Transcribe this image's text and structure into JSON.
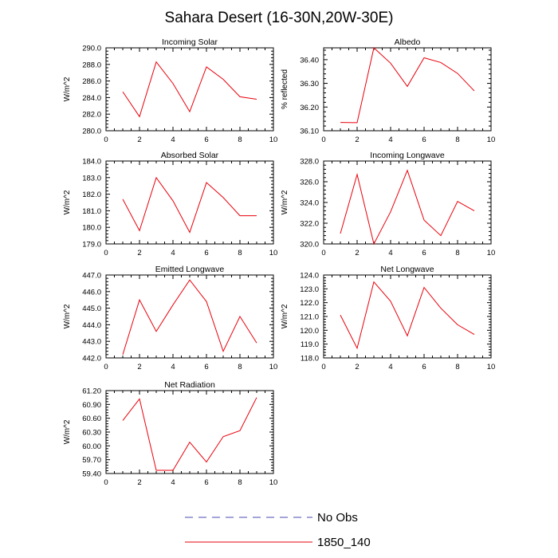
{
  "title": "Sahara Desert (16-30N,20W-30E)",
  "legend": {
    "placement": "bottom-center",
    "entries": [
      {
        "label": "No Obs",
        "color": "#4a4ab0",
        "dash": true
      },
      {
        "label": "1850_140",
        "color": "#e8000b",
        "dash": false
      }
    ]
  },
  "chart_data": [
    {
      "type": "line",
      "title": "Incoming Solar",
      "ylabel": "W/m^2",
      "xlim": [
        0,
        10
      ],
      "ylim": [
        280.0,
        290.0
      ],
      "xticks": [
        "0",
        "2",
        "4",
        "6",
        "8",
        "10"
      ],
      "yticks": [
        "280.0",
        "282.0",
        "284.0",
        "286.0",
        "288.0",
        "290.0"
      ],
      "series": [
        {
          "color": "#e8000b",
          "x": [
            1,
            2,
            3,
            4,
            5,
            6,
            7,
            8,
            9
          ],
          "values": [
            284.7,
            281.7,
            288.3,
            285.7,
            282.3,
            287.7,
            286.2,
            284.1,
            283.8
          ]
        }
      ]
    },
    {
      "type": "line",
      "title": "Albedo",
      "ylabel": "% reflected",
      "xlim": [
        0,
        10
      ],
      "ylim": [
        36.1,
        36.45
      ],
      "xticks": [
        "0",
        "2",
        "4",
        "6",
        "8",
        "10"
      ],
      "yticks": [
        "36.10",
        "36.20",
        "36.30",
        "36.40"
      ],
      "series": [
        {
          "color": "#e8000b",
          "x": [
            1,
            2,
            3,
            4,
            5,
            6,
            7,
            8,
            9
          ],
          "values": [
            36.135,
            36.134,
            36.45,
            36.385,
            36.287,
            36.408,
            36.388,
            36.342,
            36.268
          ]
        }
      ]
    },
    {
      "type": "line",
      "title": "Absorbed Solar",
      "ylabel": "W/m^2",
      "xlim": [
        0,
        10
      ],
      "ylim": [
        179.0,
        184.0
      ],
      "xticks": [
        "0",
        "2",
        "4",
        "6",
        "8",
        "10"
      ],
      "yticks": [
        "179.0",
        "180.0",
        "181.0",
        "182.0",
        "183.0",
        "184.0"
      ],
      "series": [
        {
          "color": "#e8000b",
          "x": [
            1,
            2,
            3,
            4,
            5,
            6,
            7,
            8,
            9
          ],
          "values": [
            181.7,
            179.8,
            183.0,
            181.6,
            179.7,
            182.7,
            181.8,
            180.7,
            180.7
          ]
        }
      ]
    },
    {
      "type": "line",
      "title": "Incoming Longwave",
      "ylabel": "W/m^2",
      "xlim": [
        0,
        10
      ],
      "ylim": [
        320.0,
        328.0
      ],
      "xticks": [
        "0",
        "2",
        "4",
        "6",
        "8",
        "10"
      ],
      "yticks": [
        "320.0",
        "322.0",
        "324.0",
        "326.0",
        "328.0"
      ],
      "series": [
        {
          "color": "#e8000b",
          "x": [
            1,
            2,
            3,
            4,
            5,
            6,
            7,
            8,
            9
          ],
          "values": [
            321.0,
            326.7,
            320.0,
            323.1,
            327.1,
            322.3,
            320.8,
            324.1,
            323.2
          ]
        }
      ]
    },
    {
      "type": "line",
      "title": "Emitted Longwave",
      "ylabel": "W/m^2",
      "xlim": [
        0,
        10
      ],
      "ylim": [
        442.0,
        447.0
      ],
      "xticks": [
        "0",
        "2",
        "4",
        "6",
        "8",
        "10"
      ],
      "yticks": [
        "442.0",
        "443.0",
        "444.0",
        "445.0",
        "446.0",
        "447.0"
      ],
      "series": [
        {
          "color": "#e8000b",
          "x": [
            1,
            2,
            3,
            4,
            5,
            6,
            7,
            8,
            9
          ],
          "values": [
            442.2,
            445.5,
            443.6,
            445.2,
            446.7,
            445.4,
            442.4,
            444.5,
            442.9
          ]
        }
      ]
    },
    {
      "type": "line",
      "title": "Net Longwave",
      "ylabel": "W/m^2",
      "xlim": [
        0,
        10
      ],
      "ylim": [
        118.0,
        124.0
      ],
      "xticks": [
        "0",
        "2",
        "4",
        "6",
        "8",
        "10"
      ],
      "yticks": [
        "118.0",
        "119.0",
        "120.0",
        "121.0",
        "122.0",
        "123.0",
        "124.0"
      ],
      "series": [
        {
          "color": "#e8000b",
          "x": [
            1,
            2,
            3,
            4,
            5,
            6,
            7,
            8,
            9
          ],
          "values": [
            121.1,
            118.7,
            123.5,
            122.1,
            119.6,
            123.1,
            121.6,
            120.4,
            119.7
          ]
        }
      ]
    },
    {
      "type": "line",
      "title": "Net Radiation",
      "ylabel": "W/m^2",
      "xlim": [
        0,
        10
      ],
      "ylim": [
        59.4,
        61.2
      ],
      "xticks": [
        "0",
        "2",
        "4",
        "6",
        "8",
        "10"
      ],
      "yticks": [
        "59.40",
        "59.70",
        "60.00",
        "60.30",
        "60.60",
        "60.90",
        "61.20"
      ],
      "series": [
        {
          "color": "#e8000b",
          "x": [
            1,
            2,
            3,
            4,
            5,
            6,
            7,
            8,
            9
          ],
          "values": [
            60.55,
            61.02,
            59.47,
            59.47,
            60.08,
            59.65,
            60.2,
            60.33,
            61.05
          ]
        }
      ]
    }
  ]
}
